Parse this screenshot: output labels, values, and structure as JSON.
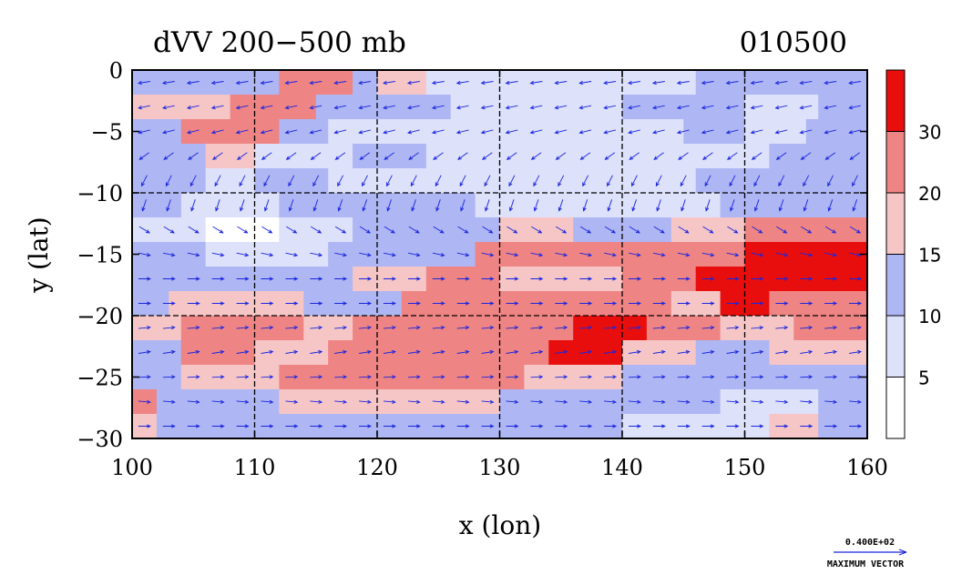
{
  "chart_data": {
    "type": "heatmap",
    "title": "dVV 200−500 mb",
    "date_label": "010500",
    "xlabel": "x (lon)",
    "ylabel": "y (lat)",
    "xlim": [
      100,
      160
    ],
    "ylim": [
      -30,
      0
    ],
    "x_ticks": [
      {
        "value": 100,
        "label": "100"
      },
      {
        "value": 110,
        "label": "110"
      },
      {
        "value": 120,
        "label": "120"
      },
      {
        "value": 130,
        "label": "130"
      },
      {
        "value": 140,
        "label": "140"
      },
      {
        "value": 150,
        "label": "150"
      },
      {
        "value": 160,
        "label": "160"
      }
    ],
    "y_ticks": [
      {
        "value": 0,
        "label": "0"
      },
      {
        "value": -5,
        "label": "−5"
      },
      {
        "value": -10,
        "label": "−10"
      },
      {
        "value": -15,
        "label": "−15"
      },
      {
        "value": -20,
        "label": "−20"
      },
      {
        "value": -25,
        "label": "−25"
      },
      {
        "value": -30,
        "label": "−30"
      }
    ],
    "grid": true,
    "gridlines_x": [
      110,
      120,
      130,
      140,
      150
    ],
    "gridlines_y": [
      -10,
      -20
    ],
    "colorbar": {
      "placement": "right",
      "bins": [
        {
          "from": 0,
          "to": 5,
          "color": "#ffffff"
        },
        {
          "from": 5,
          "to": 10,
          "color": "#dde1fa"
        },
        {
          "from": 10,
          "to": 15,
          "color": "#aeb6f4"
        },
        {
          "from": 15,
          "to": 20,
          "color": "#f6c6c6"
        },
        {
          "from": 20,
          "to": 30,
          "color": "#ee8484"
        },
        {
          "from": 30,
          "to": 35,
          "color": "#e80e0e"
        }
      ],
      "labels": [
        {
          "value": 5,
          "label": "5"
        },
        {
          "value": 10,
          "label": "10"
        },
        {
          "value": 15,
          "label": "15"
        },
        {
          "value": 20,
          "label": "20"
        },
        {
          "value": 30,
          "label": "30"
        }
      ]
    },
    "max_vector": {
      "value_label": "0.400E+02",
      "caption": "MAXIMUM VECTOR"
    },
    "vector_color": "#1a26e0",
    "field_rows": [
      {
        "lat": -1,
        "segments": [
          [
            100,
            112,
            10
          ],
          [
            112,
            118,
            20
          ],
          [
            118,
            120,
            12
          ],
          [
            120,
            124,
            15
          ],
          [
            124,
            138,
            8
          ],
          [
            138,
            146,
            5
          ],
          [
            146,
            154,
            10
          ],
          [
            154,
            160,
            12
          ]
        ]
      },
      {
        "lat": -3,
        "segments": [
          [
            100,
            108,
            15
          ],
          [
            108,
            115,
            20
          ],
          [
            115,
            120,
            12
          ],
          [
            120,
            126,
            10
          ],
          [
            126,
            140,
            5
          ],
          [
            140,
            150,
            10
          ],
          [
            150,
            156,
            5
          ],
          [
            156,
            160,
            10
          ]
        ]
      },
      {
        "lat": -5,
        "segments": [
          [
            100,
            104,
            10
          ],
          [
            104,
            112,
            20
          ],
          [
            112,
            116,
            12
          ],
          [
            116,
            126,
            8
          ],
          [
            126,
            145,
            5
          ],
          [
            145,
            150,
            10
          ],
          [
            150,
            155,
            5
          ],
          [
            155,
            160,
            10
          ]
        ]
      },
      {
        "lat": -7,
        "segments": [
          [
            100,
            106,
            10
          ],
          [
            106,
            110,
            15
          ],
          [
            110,
            118,
            8
          ],
          [
            118,
            124,
            12
          ],
          [
            124,
            140,
            8
          ],
          [
            140,
            146,
            5
          ],
          [
            146,
            152,
            8
          ],
          [
            152,
            160,
            12
          ]
        ]
      },
      {
        "lat": -9,
        "segments": [
          [
            100,
            106,
            12
          ],
          [
            106,
            110,
            8
          ],
          [
            110,
            116,
            12
          ],
          [
            116,
            130,
            8
          ],
          [
            130,
            140,
            8
          ],
          [
            140,
            146,
            5
          ],
          [
            146,
            160,
            10
          ]
        ]
      },
      {
        "lat": -11,
        "segments": [
          [
            100,
            104,
            10
          ],
          [
            104,
            112,
            5
          ],
          [
            112,
            128,
            10
          ],
          [
            128,
            136,
            8
          ],
          [
            136,
            148,
            5
          ],
          [
            148,
            160,
            12
          ]
        ]
      },
      {
        "lat": -13,
        "segments": [
          [
            100,
            106,
            5
          ],
          [
            106,
            112,
            0
          ],
          [
            112,
            118,
            8
          ],
          [
            118,
            124,
            10
          ],
          [
            124,
            130,
            12
          ],
          [
            130,
            136,
            15
          ],
          [
            136,
            144,
            12
          ],
          [
            144,
            150,
            15
          ],
          [
            150,
            160,
            20
          ]
        ]
      },
      {
        "lat": -15,
        "segments": [
          [
            100,
            106,
            10
          ],
          [
            106,
            116,
            8
          ],
          [
            116,
            122,
            12
          ],
          [
            122,
            128,
            12
          ],
          [
            128,
            136,
            20
          ],
          [
            136,
            144,
            20
          ],
          [
            144,
            150,
            20
          ],
          [
            150,
            160,
            30
          ]
        ]
      },
      {
        "lat": -17,
        "segments": [
          [
            100,
            104,
            12
          ],
          [
            104,
            118,
            10
          ],
          [
            118,
            124,
            15
          ],
          [
            124,
            130,
            20
          ],
          [
            130,
            140,
            15
          ],
          [
            140,
            146,
            20
          ],
          [
            146,
            154,
            30
          ],
          [
            154,
            160,
            30
          ]
        ]
      },
      {
        "lat": -19,
        "segments": [
          [
            100,
            103,
            10
          ],
          [
            103,
            114,
            15
          ],
          [
            114,
            122,
            12
          ],
          [
            122,
            138,
            20
          ],
          [
            138,
            144,
            20
          ],
          [
            144,
            148,
            15
          ],
          [
            148,
            152,
            30
          ],
          [
            152,
            160,
            20
          ]
        ]
      },
      {
        "lat": -21,
        "segments": [
          [
            100,
            104,
            15
          ],
          [
            104,
            114,
            20
          ],
          [
            114,
            118,
            15
          ],
          [
            118,
            124,
            20
          ],
          [
            124,
            136,
            20
          ],
          [
            136,
            142,
            30
          ],
          [
            142,
            148,
            20
          ],
          [
            148,
            154,
            15
          ],
          [
            154,
            160,
            20
          ]
        ]
      },
      {
        "lat": -23,
        "segments": [
          [
            100,
            104,
            12
          ],
          [
            104,
            110,
            20
          ],
          [
            110,
            116,
            15
          ],
          [
            116,
            134,
            20
          ],
          [
            134,
            140,
            30
          ],
          [
            140,
            146,
            15
          ],
          [
            146,
            152,
            12
          ],
          [
            152,
            160,
            15
          ]
        ]
      },
      {
        "lat": -25,
        "segments": [
          [
            100,
            104,
            12
          ],
          [
            104,
            112,
            15
          ],
          [
            112,
            120,
            20
          ],
          [
            120,
            132,
            20
          ],
          [
            132,
            140,
            15
          ],
          [
            140,
            146,
            12
          ],
          [
            146,
            152,
            10
          ],
          [
            152,
            160,
            12
          ]
        ]
      },
      {
        "lat": -27,
        "segments": [
          [
            100,
            102,
            20
          ],
          [
            102,
            112,
            12
          ],
          [
            112,
            130,
            15
          ],
          [
            130,
            138,
            12
          ],
          [
            138,
            148,
            10
          ],
          [
            148,
            156,
            8
          ],
          [
            156,
            160,
            12
          ]
        ]
      },
      {
        "lat": -29,
        "segments": [
          [
            100,
            102,
            15
          ],
          [
            102,
            116,
            10
          ],
          [
            116,
            130,
            12
          ],
          [
            130,
            140,
            10
          ],
          [
            140,
            152,
            8
          ],
          [
            152,
            156,
            15
          ],
          [
            156,
            160,
            12
          ]
        ]
      }
    ],
    "vector_rows": [
      {
        "lat": -1,
        "dir": [
          -1,
          -0.15
        ]
      },
      {
        "lat": -3,
        "dir": [
          -1,
          -0.2
        ]
      },
      {
        "lat": -5,
        "dir": [
          -1,
          -0.25
        ]
      },
      {
        "lat": -7,
        "dir": [
          -0.7,
          -0.5
        ]
      },
      {
        "lat": -9,
        "dir": [
          -0.4,
          -0.8
        ]
      },
      {
        "lat": -11,
        "dir": [
          -0.3,
          -0.9
        ]
      },
      {
        "lat": -13,
        "dir": [
          0.8,
          -0.5
        ]
      },
      {
        "lat": -15,
        "dir": [
          1,
          -0.2
        ]
      },
      {
        "lat": -17,
        "dir": [
          1,
          0
        ]
      },
      {
        "lat": -19,
        "dir": [
          1,
          0
        ]
      },
      {
        "lat": -21,
        "dir": [
          1,
          0.1
        ]
      },
      {
        "lat": -23,
        "dir": [
          1,
          0.15
        ]
      },
      {
        "lat": -25,
        "dir": [
          1,
          0.05
        ]
      },
      {
        "lat": -27,
        "dir": [
          1,
          -0.1
        ]
      },
      {
        "lat": -29,
        "dir": [
          1,
          0
        ]
      }
    ]
  }
}
